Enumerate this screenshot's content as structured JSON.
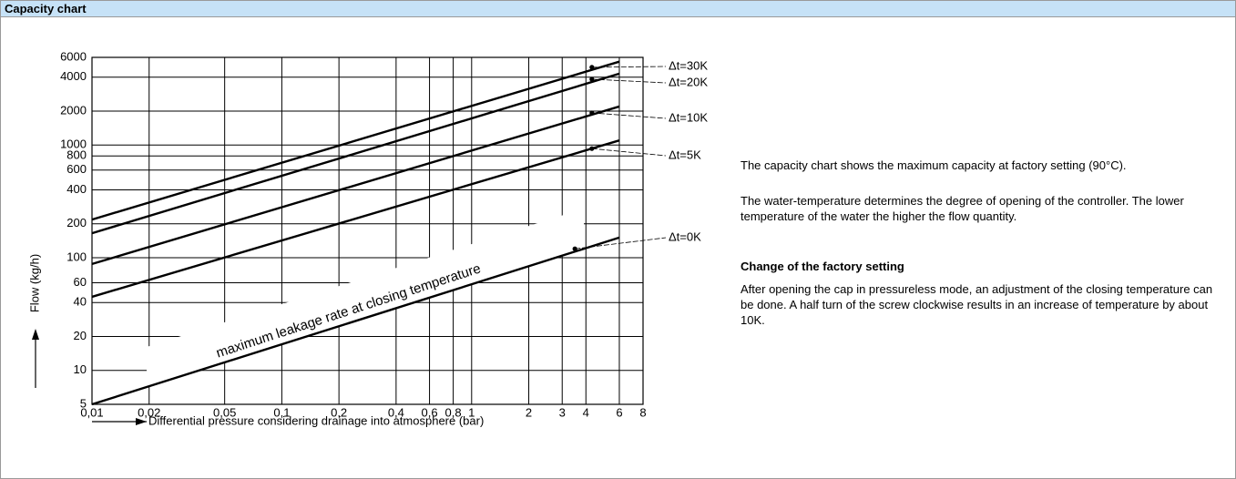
{
  "header": {
    "title": "Capacity chart"
  },
  "chart_data": {
    "type": "line",
    "xlabel": "Differential pressure considering drainage into atmosphere (bar)",
    "ylabel": "Flow (kg/h)",
    "annotation": "maximum leakage rate at closing temperature",
    "xscale": "log",
    "yscale": "log",
    "grid": true,
    "color": "#000000",
    "xlim": [
      0.01,
      8
    ],
    "ylim": [
      5,
      6000
    ],
    "xticks": [
      {
        "value": 0.01,
        "label": "0,01"
      },
      {
        "value": 0.02,
        "label": "0,02"
      },
      {
        "value": 0.05,
        "label": "0,05"
      },
      {
        "value": 0.1,
        "label": "0,1"
      },
      {
        "value": 0.2,
        "label": "0,2"
      },
      {
        "value": 0.4,
        "label": "0,4"
      },
      {
        "value": 0.6,
        "label": "0,6"
      },
      {
        "value": 0.8,
        "label": "0,8"
      },
      1,
      2,
      3,
      4,
      6,
      8
    ],
    "yticks": [
      5,
      10,
      20,
      40,
      60,
      100,
      200,
      400,
      600,
      800,
      1000,
      2000,
      4000,
      6000
    ],
    "series": [
      {
        "name": "Δt=30K",
        "x": [
          0.01,
          6
        ],
        "values": [
          218,
          5500
        ],
        "point": {
          "x": 4.3,
          "value": 4900
        }
      },
      {
        "name": "Δt=20K",
        "x": [
          0.01,
          6
        ],
        "values": [
          165,
          4300
        ],
        "point": {
          "x": 4.3,
          "value": 3840
        }
      },
      {
        "name": "Δt=10K",
        "x": [
          0.01,
          6
        ],
        "values": [
          88,
          2200
        ],
        "point": {
          "x": 4.3,
          "value": 1930
        }
      },
      {
        "name": "Δt=5K",
        "x": [
          0.01,
          6
        ],
        "values": [
          45,
          1100
        ],
        "point": {
          "x": 4.3,
          "value": 930
        }
      },
      {
        "name": "Δt=0K",
        "x": [
          0.01,
          6
        ],
        "values": [
          5,
          151
        ],
        "point": {
          "x": 3.5,
          "value": 120
        }
      }
    ]
  },
  "text": {
    "paragraphs": [
      "The capacity chart shows the maximum capacity at factory setting (90°C).",
      "The water-temperature determines the degree of opening of the controller. The lower temperature of the water the higher the flow quantity."
    ],
    "heading": "Change of the factory setting",
    "body": "After opening the cap in pressureless mode, an adjustment of the closing temperature can be done. A half turn of the screw clockwise results in an increase of temperature by about 10K."
  }
}
